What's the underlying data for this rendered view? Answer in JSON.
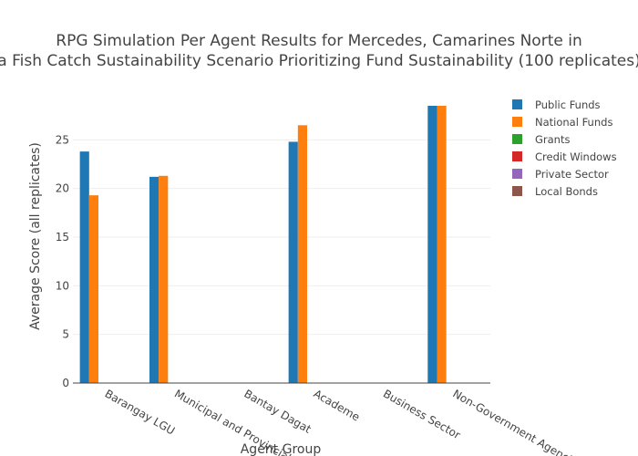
{
  "chart_data": {
    "type": "bar",
    "title_lines": [
      "RPG Simulation Per Agent Results for Mercedes, Camarines Norte in",
      "a Fish Catch Sustainability Scenario Prioritizing Fund Sustainability (100 replicates)"
    ],
    "xlabel": "Agent Group",
    "ylabel": "Average Score (all replicates)",
    "categories": [
      "Barangay LGU",
      "Municipal and Provincial LGU",
      "Bantay Dagat",
      "Academe",
      "Business Sector",
      "Non-Government Agencies"
    ],
    "ylim": [
      0,
      30
    ],
    "yticks": [
      0,
      5,
      10,
      15,
      20,
      25
    ],
    "grid": true,
    "legend_position": "right",
    "series": [
      {
        "name": "Public Funds",
        "color": "#1f77b4",
        "values": [
          23.8,
          21.2,
          0,
          24.8,
          0,
          28.5
        ]
      },
      {
        "name": "National Funds",
        "color": "#ff7f0e",
        "values": [
          19.3,
          21.3,
          0,
          26.5,
          0,
          28.5
        ]
      },
      {
        "name": "Grants",
        "color": "#2ca02c",
        "values": [
          0,
          0,
          0,
          0,
          0,
          0
        ]
      },
      {
        "name": "Credit Windows",
        "color": "#d62728",
        "values": [
          0,
          0,
          0,
          0,
          0,
          0
        ]
      },
      {
        "name": "Private Sector",
        "color": "#9467bd",
        "values": [
          0,
          0,
          0,
          0,
          0,
          0
        ]
      },
      {
        "name": "Local Bonds",
        "color": "#8c564b",
        "values": [
          0,
          0,
          0,
          0,
          0,
          0
        ]
      }
    ]
  }
}
